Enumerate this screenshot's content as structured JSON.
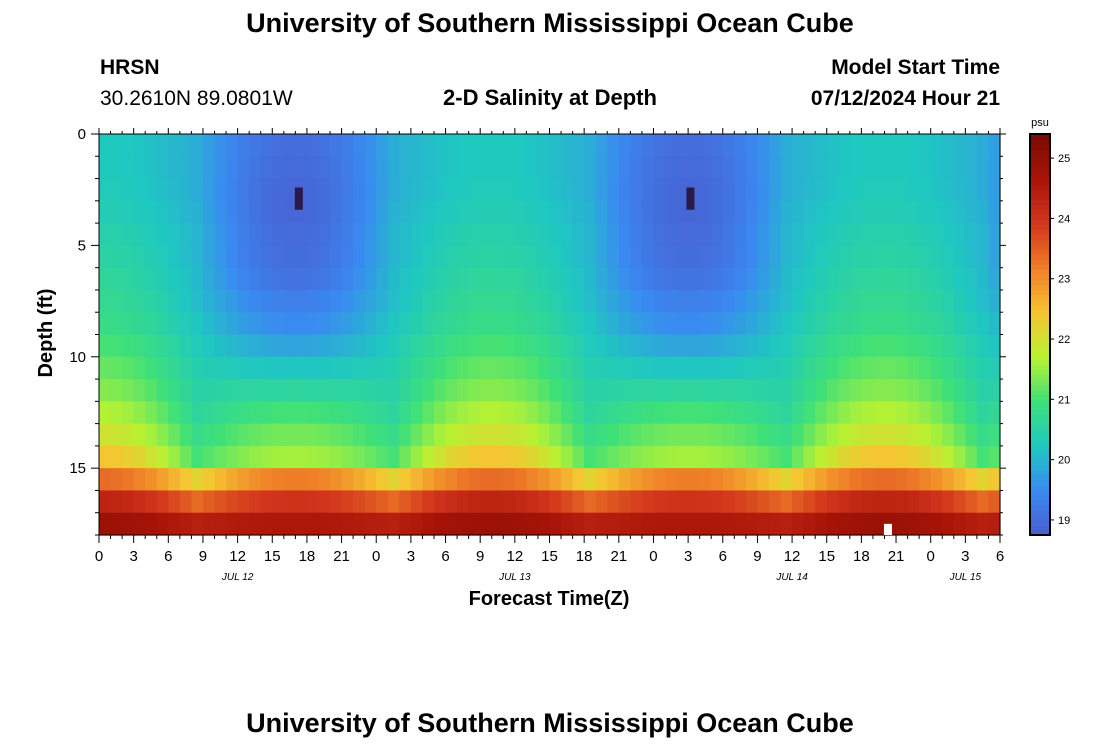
{
  "header": {
    "title": "University of Southern Mississippi Ocean Cube",
    "station": "HRSN",
    "coords": "30.2610N  89.0801W",
    "plot_title": "2-D Salinity at Depth",
    "model_start_label": "Model Start Time",
    "model_start_value": "07/12/2024 Hour 21"
  },
  "footer": {
    "title": "University of Southern Mississippi Ocean Cube"
  },
  "colors": {
    "scale": [
      "#4a5ed0",
      "#3a8af2",
      "#1fc8c0",
      "#3ee07a",
      "#b8f232",
      "#f6c432",
      "#ef7e28",
      "#d2361c",
      "#a81408",
      "#7a0a02"
    ]
  },
  "chart_data": {
    "type": "heatmap",
    "title": "2-D Salinity at Depth",
    "xlabel": "Forecast Time(Z)",
    "ylabel": "Depth (ft)",
    "x_hours_from_jul12_00": [
      0,
      78
    ],
    "x_step_hours": 1,
    "x_tick_hours": [
      0,
      3,
      6,
      9,
      12,
      15,
      18,
      21,
      24,
      27,
      30,
      33,
      36,
      39,
      42,
      45,
      48,
      51,
      54,
      57,
      60,
      63,
      66,
      69,
      72,
      75,
      78
    ],
    "x_tick_labels": [
      "0",
      "3",
      "6",
      "9",
      "12",
      "15",
      "18",
      "21",
      "0",
      "3",
      "6",
      "9",
      "12",
      "15",
      "18",
      "21",
      "0",
      "3",
      "6",
      "9",
      "12",
      "15",
      "18",
      "21",
      "0",
      "3",
      "6"
    ],
    "date_labels": [
      {
        "label": "JUL 12",
        "hour": 12
      },
      {
        "label": "JUL 13",
        "hour": 36
      },
      {
        "label": "JUL 14",
        "hour": 60
      },
      {
        "label": "JUL 15",
        "hour": 75
      }
    ],
    "ylim": [
      0,
      18
    ],
    "y_ticks": [
      0,
      5,
      10,
      15
    ],
    "depth_levels_ft": [
      0,
      1,
      2,
      3,
      4,
      5,
      6,
      7,
      8,
      9,
      10,
      11,
      12,
      13,
      14,
      15,
      16,
      17,
      18
    ],
    "salinity_profile_by_depth": {
      "high_tide_at_hour_0": [
        20.3,
        20.3,
        20.35,
        20.4,
        20.5,
        20.6,
        20.7,
        20.8,
        20.9,
        21.1,
        21.3,
        21.5,
        21.8,
        22.1,
        22.6,
        23.5,
        24.4,
        24.9,
        25.2
      ],
      "low_tide_at_hour_17": [
        19.0,
        18.95,
        18.9,
        18.9,
        18.95,
        19.0,
        19.1,
        19.3,
        19.5,
        19.8,
        20.2,
        20.6,
        21.0,
        21.3,
        21.6,
        23.2,
        24.0,
        24.6,
        25.0
      ],
      "mid_at_hour_45": [
        19.9,
        19.9,
        19.9,
        19.95,
        20.0,
        20.0,
        20.05,
        20.1,
        20.2,
        20.3,
        20.4,
        20.5,
        20.6,
        20.8,
        21.0,
        22.2,
        23.4,
        24.4,
        24.9
      ]
    },
    "colorbar": {
      "label": "psu",
      "range": [
        18.75,
        25.4
      ],
      "ticks": [
        19,
        20,
        21,
        22,
        23,
        24,
        25
      ]
    }
  }
}
